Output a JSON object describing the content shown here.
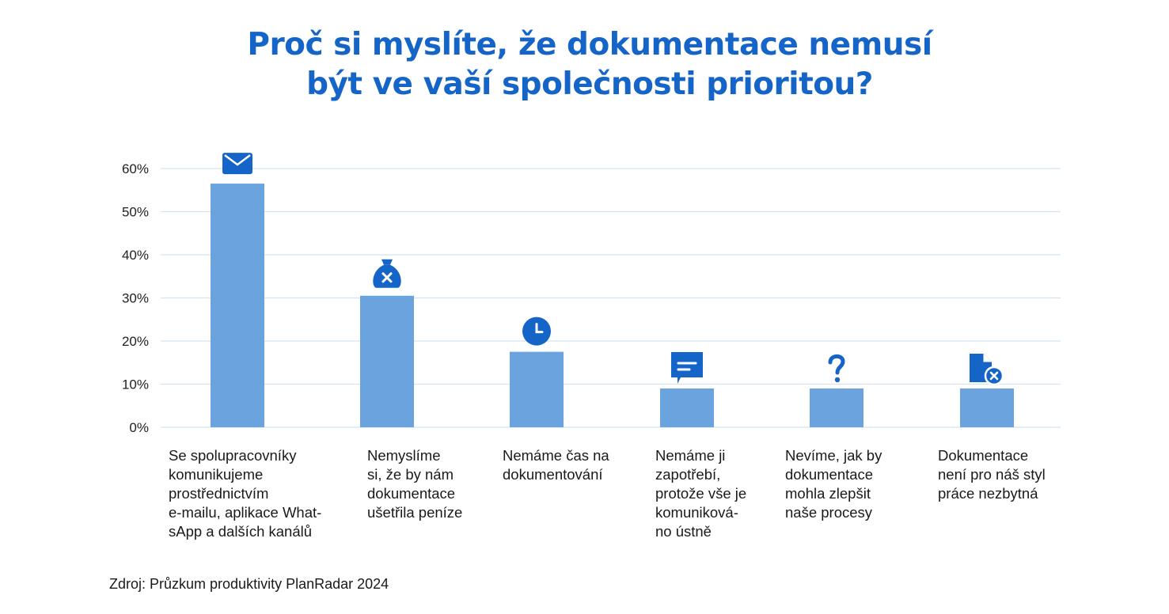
{
  "title_lines": [
    "Proč si myslíte, že dokumentace nemusí",
    "být ve vaší společnosti prioritou?"
  ],
  "source": "Zdroj: Průzkum produktivity PlanRadar 2024",
  "colors": {
    "title": "#1565c8",
    "bar": "#6aa3de",
    "icon": "#1565c8",
    "grid": "#d4e3f1"
  },
  "chart_data": {
    "type": "bar",
    "ylim": [
      0,
      60
    ],
    "y_ticks": [
      0,
      10,
      20,
      30,
      40,
      50,
      60
    ],
    "y_tick_labels": [
      "0%",
      "10%",
      "20%",
      "30%",
      "40%",
      "50%",
      "60%"
    ],
    "grid": true,
    "categories": [
      "Se spolupracovníky komunikujeme prostřednictvím e-mailu, aplikace WhatsApp a dalších kanálů",
      "Nemyslíme si, že by nám dokumentace ušetřila peníze",
      "Nemáme čas na dokumentování",
      "Nemáme ji zapotřebí, protože vše je komunikováno ústně",
      "Nevíme, jak by dokumentace mohla zlepšit naše procesy",
      "Dokumentace není pro náš styl práce nezbytná"
    ],
    "category_label_lines": [
      [
        "Se spolupracovníky",
        "komunikujeme",
        "prostřednictvím",
        "e-mailu, aplikace What-",
        "sApp a dalších kanálů"
      ],
      [
        "Nemyslíme",
        "si, že by nám",
        "dokumentace",
        "ušetřila peníze"
      ],
      [
        "Nemáme čas na",
        "dokumentování"
      ],
      [
        "Nemáme ji",
        "zapotřebí,",
        "protože vše je",
        "komuniková-",
        "no ústně"
      ],
      [
        "Nevíme, jak by",
        "dokumentace",
        "mohla zlepšit",
        "naše procesy"
      ],
      [
        "Dokumentace",
        "není pro náš styl",
        "práce nezbytná"
      ]
    ],
    "values": [
      56.5,
      30.5,
      17.5,
      9,
      9,
      9
    ],
    "icons": [
      "envelope-icon",
      "money-bag-x-icon",
      "clock-icon",
      "chat-bubble-icon",
      "question-mark-icon",
      "document-x-icon"
    ]
  }
}
